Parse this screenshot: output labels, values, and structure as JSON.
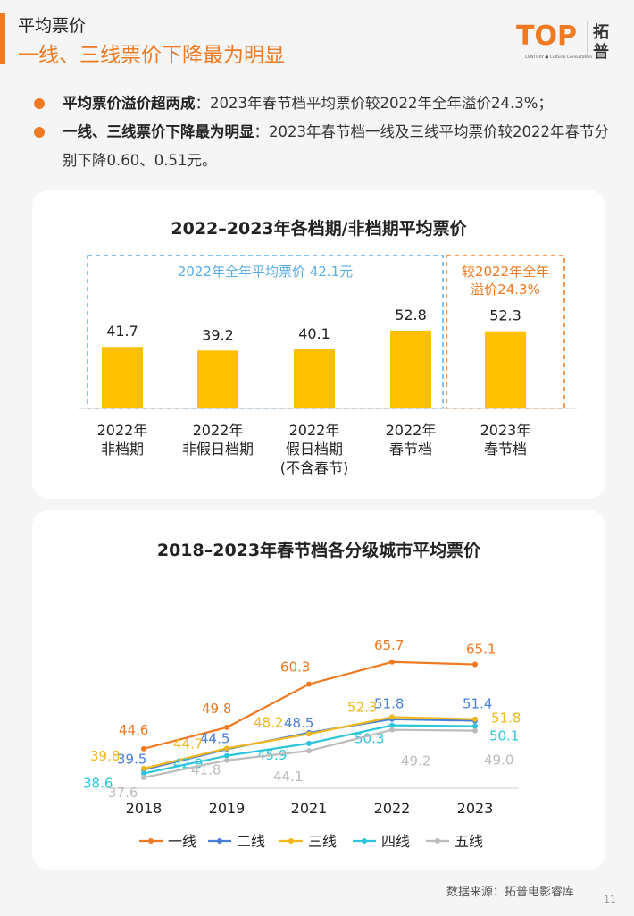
{
  "header": {
    "title": "平均票价",
    "subtitle": "一线、三线票价下降最为明显"
  },
  "logo": {
    "text": "TOP",
    "brand": "拓",
    "brand2": "普",
    "tagline": "CENTURY ● Cultural Consultation"
  },
  "bullets": [
    {
      "bold": "平均票价溢价超两成",
      "text": "：2023年春节档平均票价较2022年全年溢价24.3%；"
    },
    {
      "bold": "一线、三线票价下降最为明显",
      "text": "：2023年春节档一线及三线平均票价较2022年春节分别下降0.60、0.51元。"
    }
  ],
  "colors": {
    "accent": "#f07a21",
    "bar": "#ffc000",
    "box_blue": "#5aaee8"
  },
  "chart_data": [
    {
      "type": "bar",
      "title": "2022–2023年各档期/非档期平均票价",
      "categories": [
        "2022年\n非档期",
        "2022年\n非假日档期",
        "2022年\n假日档期\n(不含春节)",
        "2022年\n春节档",
        "2023年\n春节档"
      ],
      "values": [
        41.7,
        39.2,
        40.1,
        52.8,
        52.3
      ],
      "annotations": [
        "2022年全年平均票价 42.1元",
        "较2022年全年\n溢价24.3%"
      ]
    },
    {
      "type": "line",
      "title": "2018–2023年春节档各分级城市平均票价",
      "categories": [
        "2018",
        "2019",
        "2021",
        "2022",
        "2023"
      ],
      "series": [
        {
          "name": "一线",
          "color": "#f07a21",
          "values": [
            44.6,
            49.8,
            60.3,
            65.7,
            65.1
          ]
        },
        {
          "name": "二线",
          "color": "#4a7fd6",
          "values": [
            39.5,
            44.5,
            48.5,
            51.8,
            51.4
          ]
        },
        {
          "name": "三线",
          "color": "#f0b81c",
          "values": [
            39.8,
            44.7,
            48.2,
            52.3,
            51.8
          ]
        },
        {
          "name": "四线",
          "color": "#2cc6dc",
          "values": [
            38.6,
            42.9,
            45.9,
            50.3,
            50.1
          ]
        },
        {
          "name": "五线",
          "color": "#bcbcbc",
          "values": [
            37.6,
            41.8,
            44.1,
            49.2,
            49.0
          ]
        }
      ]
    }
  ],
  "footer": {
    "source": "数据来源：拓普电影睿库",
    "page": "11"
  }
}
